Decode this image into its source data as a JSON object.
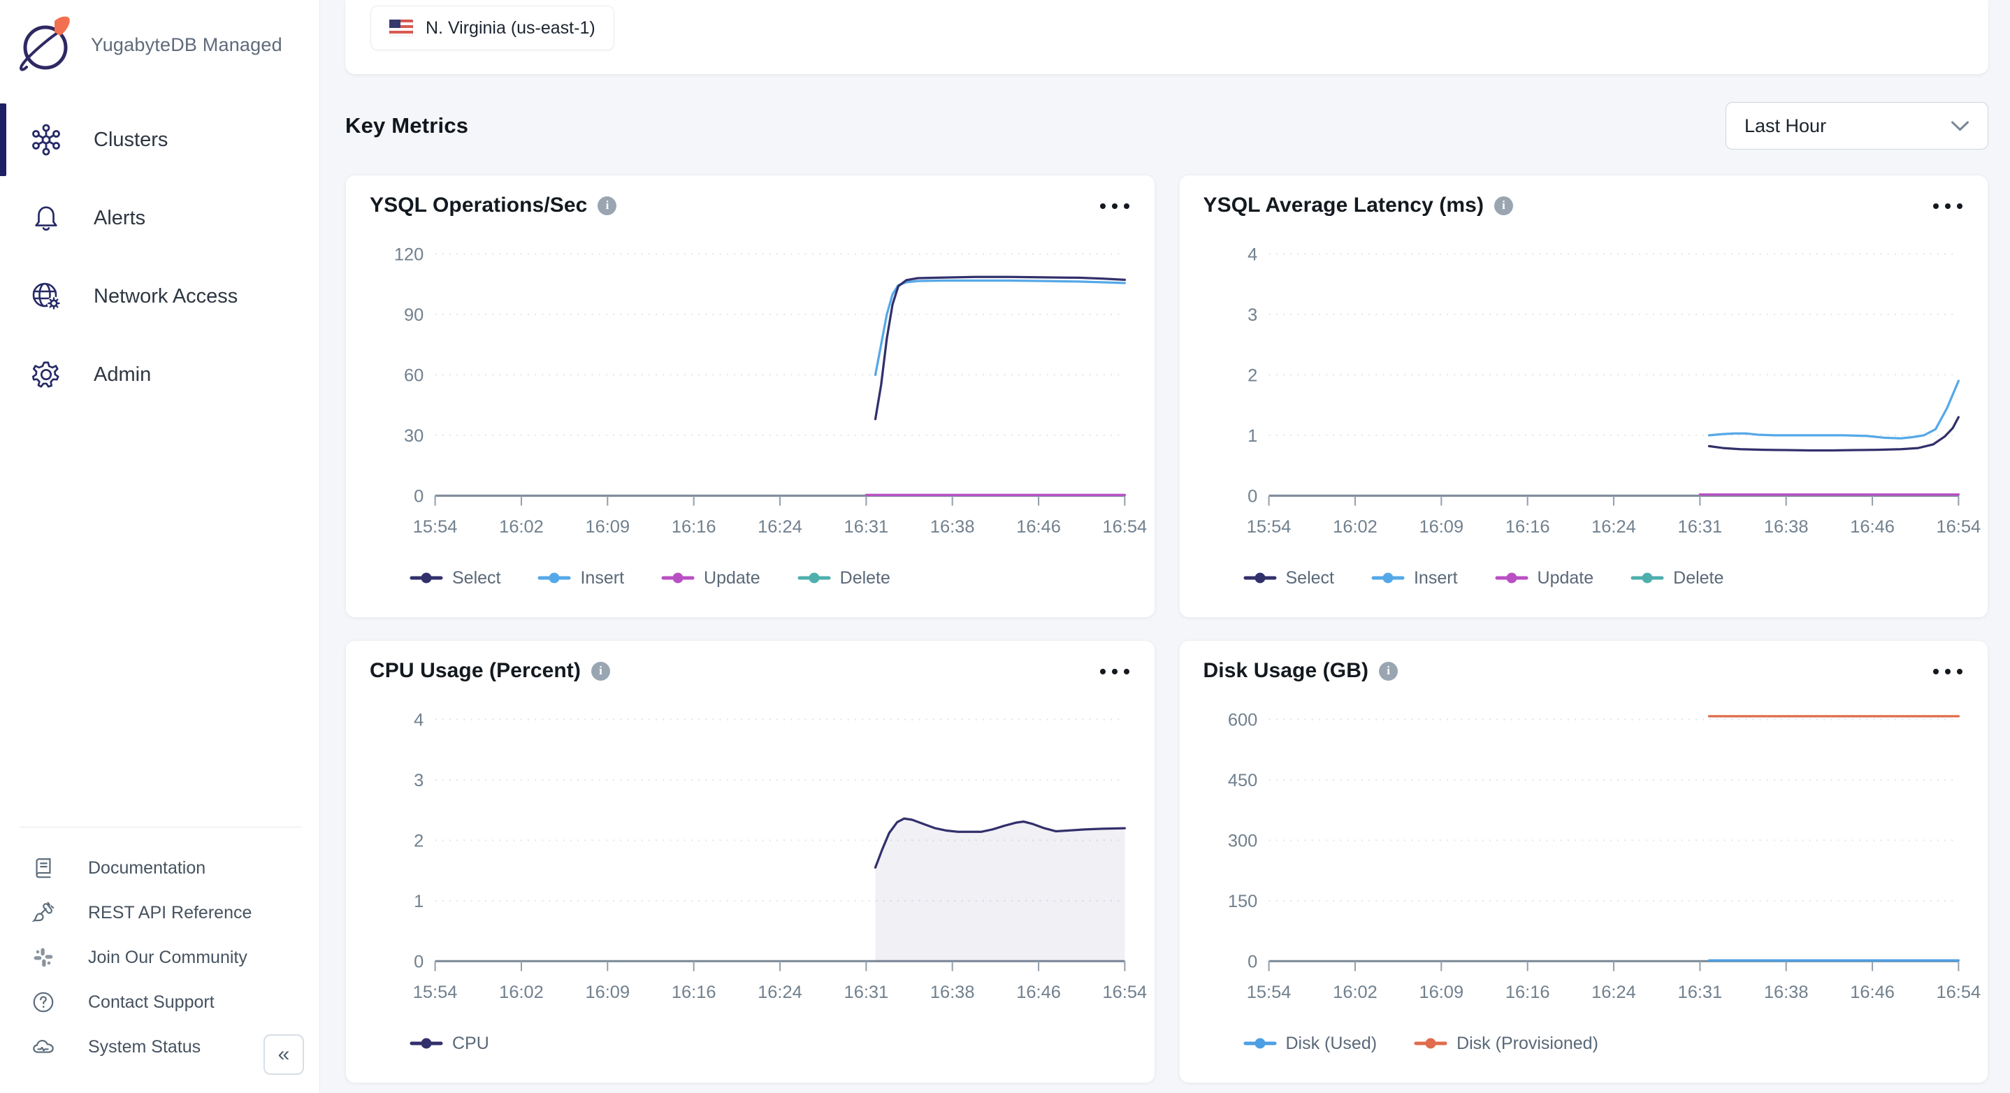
{
  "sidebar": {
    "brand": "YugabyteDB Managed",
    "items": [
      {
        "label": "Clusters",
        "icon": "clusters-icon",
        "active": true
      },
      {
        "label": "Alerts",
        "icon": "bell-icon",
        "active": false
      },
      {
        "label": "Network Access",
        "icon": "globe-gear-icon",
        "active": false
      },
      {
        "label": "Admin",
        "icon": "gear-icon",
        "active": false
      }
    ],
    "footer_items": [
      {
        "label": "Documentation",
        "icon": "book-icon"
      },
      {
        "label": "REST API Reference",
        "icon": "plug-icon"
      },
      {
        "label": "Join Our Community",
        "icon": "slack-icon"
      },
      {
        "label": "Contact Support",
        "icon": "question-circle-icon"
      },
      {
        "label": "System Status",
        "icon": "cloud-status-icon"
      }
    ],
    "collapse_label": "«"
  },
  "topbar": {
    "region_chip": "N. Virginia (us-east-1)",
    "flag": "us-flag-icon"
  },
  "header": {
    "title": "Key Metrics",
    "time_range": "Last Hour"
  },
  "colors": {
    "select_navy": "#32306B",
    "insert_blue": "#55A8E8",
    "update_magenta": "#BA4FC4",
    "delete_teal": "#4FAFAD",
    "disk_used_blue": "#4C9FE4",
    "disk_provisioned_orange": "#E06C4B",
    "active_indicator": "#1D2063"
  },
  "chart_data": [
    {
      "type": "line",
      "title": "YSQL Operations/Sec",
      "x_ticks": [
        "15:54",
        "16:02",
        "16:09",
        "16:16",
        "16:24",
        "16:31",
        "16:38",
        "16:46",
        "16:54"
      ],
      "x_max": 60,
      "y_ticks": [
        0,
        30,
        60,
        90,
        120
      ],
      "y_max": 120,
      "ylim": [
        0,
        120
      ],
      "grid": "dotted-horizontal",
      "legend_position": "bottom",
      "series": [
        {
          "name": "Select",
          "color": "#32306B",
          "points": [
            [
              38.3,
              38
            ],
            [
              38.8,
              55
            ],
            [
              39.3,
              78
            ],
            [
              39.8,
              95
            ],
            [
              40.3,
              104
            ],
            [
              41,
              107
            ],
            [
              42,
              108
            ],
            [
              44,
              108.3
            ],
            [
              47,
              108.6
            ],
            [
              50,
              108.6
            ],
            [
              53,
              108.4
            ],
            [
              56,
              108.2
            ],
            [
              58,
              107.8
            ],
            [
              60,
              107.2
            ]
          ]
        },
        {
          "name": "Insert",
          "color": "#55A8E8",
          "points": [
            [
              38.3,
              60
            ],
            [
              38.8,
              75
            ],
            [
              39.3,
              90
            ],
            [
              39.8,
              100
            ],
            [
              40.3,
              104.5
            ],
            [
              41,
              106
            ],
            [
              42,
              106.6
            ],
            [
              44,
              106.8
            ],
            [
              47,
              106.8
            ],
            [
              50,
              106.8
            ],
            [
              53,
              106.6
            ],
            [
              56,
              106.3
            ],
            [
              58,
              106
            ],
            [
              60,
              105.6
            ]
          ]
        },
        {
          "name": "Update",
          "color": "#BA4FC4",
          "points": [
            [
              37.5,
              0.4
            ],
            [
              60,
              0.4
            ]
          ]
        },
        {
          "name": "Delete",
          "color": "#4FAFAD",
          "points": [
            [
              37.5,
              0.4
            ],
            [
              60,
              0.4
            ]
          ]
        }
      ]
    },
    {
      "type": "line",
      "title": "YSQL Average Latency (ms)",
      "x_ticks": [
        "15:54",
        "16:02",
        "16:09",
        "16:16",
        "16:24",
        "16:31",
        "16:38",
        "16:46",
        "16:54"
      ],
      "x_max": 60,
      "y_ticks": [
        0,
        1,
        2,
        3,
        4
      ],
      "y_max": 4,
      "ylim": [
        0,
        4
      ],
      "grid": "dotted-horizontal",
      "legend_position": "bottom",
      "series": [
        {
          "name": "Select",
          "color": "#32306B",
          "points": [
            [
              38.3,
              0.82
            ],
            [
              39.5,
              0.79
            ],
            [
              41,
              0.77
            ],
            [
              43,
              0.76
            ],
            [
              45,
              0.755
            ],
            [
              47,
              0.75
            ],
            [
              49,
              0.75
            ],
            [
              51,
              0.755
            ],
            [
              53,
              0.76
            ],
            [
              55,
              0.77
            ],
            [
              56.5,
              0.79
            ],
            [
              57.8,
              0.85
            ],
            [
              58.8,
              0.98
            ],
            [
              59.5,
              1.12
            ],
            [
              60,
              1.3
            ]
          ]
        },
        {
          "name": "Insert",
          "color": "#55A8E8",
          "points": [
            [
              38.3,
              1.0
            ],
            [
              39.5,
              1.02
            ],
            [
              40.5,
              1.03
            ],
            [
              41.5,
              1.03
            ],
            [
              42.5,
              1.01
            ],
            [
              44,
              1.0
            ],
            [
              46,
              1.0
            ],
            [
              48,
              1.0
            ],
            [
              50,
              1.0
            ],
            [
              52,
              0.99
            ],
            [
              53.5,
              0.96
            ],
            [
              55,
              0.95
            ],
            [
              56,
              0.97
            ],
            [
              57,
              1.0
            ],
            [
              58,
              1.1
            ],
            [
              59,
              1.45
            ],
            [
              60,
              1.9
            ]
          ]
        },
        {
          "name": "Update",
          "color": "#BA4FC4",
          "points": [
            [
              37.5,
              0.02
            ],
            [
              60,
              0.02
            ]
          ]
        },
        {
          "name": "Delete",
          "color": "#4FAFAD",
          "points": [
            [
              37.5,
              0.02
            ],
            [
              60,
              0.02
            ]
          ]
        }
      ]
    },
    {
      "type": "area",
      "title": "CPU Usage (Percent)",
      "x_ticks": [
        "15:54",
        "16:02",
        "16:09",
        "16:16",
        "16:24",
        "16:31",
        "16:38",
        "16:46",
        "16:54"
      ],
      "x_max": 60,
      "y_ticks": [
        0,
        1,
        2,
        3,
        4
      ],
      "y_max": 4,
      "ylim": [
        0,
        4
      ],
      "grid": "dotted-horizontal",
      "legend_position": "bottom",
      "series": [
        {
          "name": "CPU",
          "color": "#32306B",
          "fill": "rgba(50,48,107,0.07)",
          "points": [
            [
              38.3,
              1.55
            ],
            [
              38.9,
              1.85
            ],
            [
              39.5,
              2.12
            ],
            [
              40.2,
              2.3
            ],
            [
              40.8,
              2.36
            ],
            [
              41.5,
              2.34
            ],
            [
              42.5,
              2.27
            ],
            [
              43.5,
              2.2
            ],
            [
              44.5,
              2.16
            ],
            [
              45.5,
              2.14
            ],
            [
              46.5,
              2.14
            ],
            [
              47.5,
              2.14
            ],
            [
              48.5,
              2.18
            ],
            [
              49.5,
              2.24
            ],
            [
              50.5,
              2.29
            ],
            [
              51.2,
              2.31
            ],
            [
              52,
              2.27
            ],
            [
              53,
              2.2
            ],
            [
              54,
              2.15
            ],
            [
              55,
              2.16
            ],
            [
              56.5,
              2.18
            ],
            [
              58,
              2.19
            ],
            [
              60,
              2.2
            ]
          ]
        }
      ]
    },
    {
      "type": "line",
      "title": "Disk Usage (GB)",
      "x_ticks": [
        "15:54",
        "16:02",
        "16:09",
        "16:16",
        "16:24",
        "16:31",
        "16:38",
        "16:46",
        "16:54"
      ],
      "x_max": 60,
      "y_ticks": [
        0,
        150,
        300,
        450,
        600
      ],
      "y_max": 600,
      "ylim": [
        0,
        610
      ],
      "grid": "dotted-horizontal",
      "legend_position": "bottom",
      "series": [
        {
          "name": "Disk (Used)",
          "color": "#4C9FE4",
          "points": [
            [
              38.3,
              2
            ],
            [
              60,
              2
            ]
          ]
        },
        {
          "name": "Disk (Provisioned)",
          "color": "#E06C4B",
          "points": [
            [
              38.3,
              608
            ],
            [
              60,
              608
            ]
          ]
        }
      ]
    }
  ]
}
